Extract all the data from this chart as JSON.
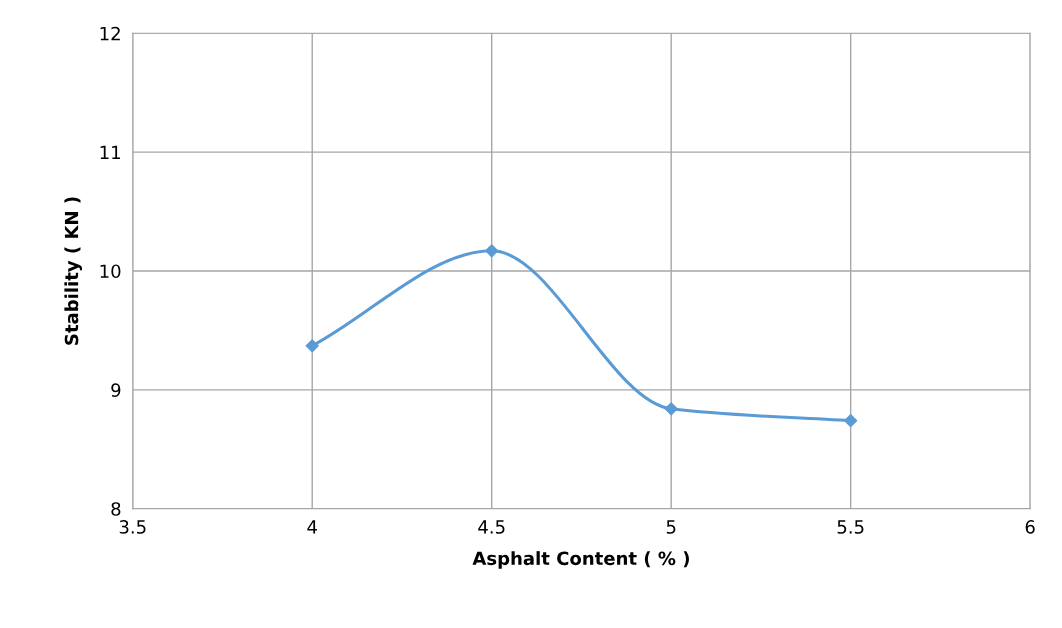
{
  "chart_data": {
    "type": "line",
    "xlabel": "Asphalt Content ( % )",
    "ylabel": "Stability ( KN )",
    "x": [
      4,
      4.5,
      5,
      5.5
    ],
    "series": [
      {
        "color": "#5b9bd5",
        "values": [
          9.37,
          10.17,
          8.84,
          8.74
        ]
      }
    ],
    "xlim": [
      3.5,
      6
    ],
    "xticks": [
      3.5,
      4,
      4.5,
      5,
      5.5,
      6
    ],
    "ylim": [
      8,
      12
    ],
    "yticks": [
      8,
      9,
      10,
      11,
      12
    ],
    "grid": true,
    "marker": "diamond",
    "line_style": "solid"
  }
}
